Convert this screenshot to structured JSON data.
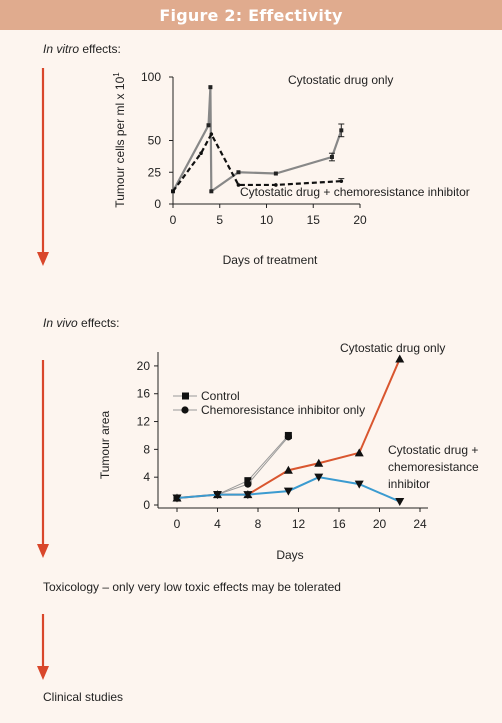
{
  "figure_title": "Figure 2: Effectivity",
  "sections": {
    "in_vitro": {
      "italic": "In vitro",
      "rest": " effects:"
    },
    "in_vivo": {
      "italic": "In vivo",
      "rest": " effects:"
    },
    "toxicology": "Toxicology – only very low toxic effects may be tolerated",
    "clinical": "Clinical studies"
  },
  "colors": {
    "title_bar": "#e0ab8e",
    "arrow": "#d9472b",
    "gray_line": "#888888",
    "orange_line": "#d9562f",
    "blue_line": "#3b9bd0"
  },
  "chart_data": [
    {
      "type": "line",
      "xlabel": "Days of treatment",
      "ylabel": "Tumour cells per ml x 10",
      "ylabel_superscript": "1",
      "xlim": [
        0,
        20
      ],
      "ylim": [
        0,
        100
      ],
      "xticks": [
        0,
        5,
        10,
        15,
        20
      ],
      "yticks": [
        0,
        25,
        50,
        100
      ],
      "series": [
        {
          "name": "Cytostatic drug only",
          "style": "solid",
          "x": [
            0,
            3.8,
            4.0,
            4.1,
            7,
            11,
            17,
            18
          ],
          "y": [
            10,
            62,
            92,
            10,
            25,
            24,
            37,
            58
          ],
          "errors": [
            0,
            0,
            0,
            0,
            0,
            0,
            3,
            5
          ]
        },
        {
          "name": "Cytostatic drug + chemoresistance inhibitor",
          "style": "dashed",
          "x": [
            0,
            3,
            4.1,
            7,
            11,
            18
          ],
          "y": [
            10,
            40,
            55,
            15,
            15,
            18
          ],
          "errors": [
            0,
            0,
            0,
            0,
            0,
            2
          ]
        }
      ]
    },
    {
      "type": "line",
      "xlabel": "Days",
      "ylabel": "Tumour area",
      "xlim": [
        0,
        24
      ],
      "ylim": [
        0,
        22
      ],
      "xticks": [
        0,
        4,
        8,
        12,
        16,
        20,
        24
      ],
      "yticks": [
        0,
        4,
        8,
        12,
        16,
        20
      ],
      "legend": [
        "Control",
        "Chemoresistance inhibitor only"
      ],
      "series": [
        {
          "name": "Control",
          "marker": "square",
          "color": "gray",
          "x": [
            0,
            4,
            7,
            11
          ],
          "y": [
            1.0,
            1.5,
            3.5,
            10
          ]
        },
        {
          "name": "Chemoresistance inhibitor only",
          "marker": "circle",
          "color": "gray",
          "x": [
            0,
            4,
            7,
            11
          ],
          "y": [
            1.0,
            1.5,
            3.0,
            9.8
          ]
        },
        {
          "name": "Cytostatic drug only",
          "marker": "triangle-up",
          "color": "orange",
          "x": [
            0,
            4,
            7,
            11,
            14,
            18,
            22
          ],
          "y": [
            1.0,
            1.5,
            1.5,
            5.0,
            6.0,
            7.5,
            21
          ]
        },
        {
          "name": "Cytostatic drug + chemoresistance inhibitor",
          "name_lines": [
            "Cytostatic drug +",
            "chemoresistance",
            "inhibitor"
          ],
          "marker": "triangle-down",
          "color": "blue",
          "x": [
            0,
            4,
            7,
            11,
            14,
            18,
            22
          ],
          "y": [
            1.0,
            1.5,
            1.5,
            2.0,
            4.0,
            3.0,
            0.5
          ]
        }
      ]
    }
  ]
}
